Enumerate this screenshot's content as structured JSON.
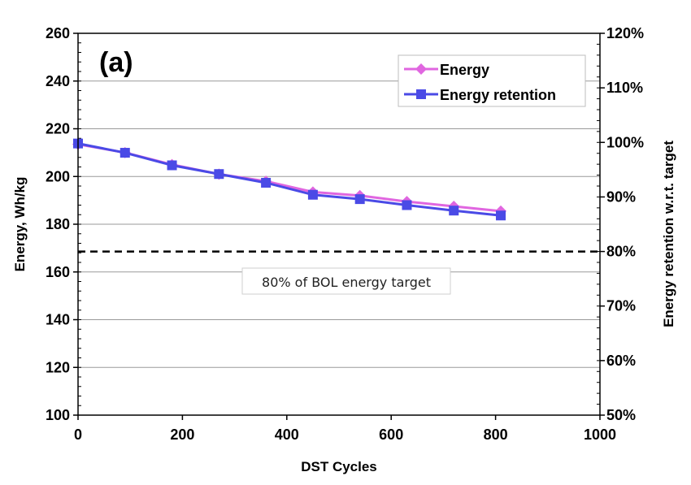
{
  "chart_data": {
    "type": "line",
    "panel_label": "(a)",
    "xlabel": "DST Cycles",
    "ylabel": "Energy, Wh/kg",
    "y2label": "Energy retention w.r.t. target",
    "xlim": [
      0,
      1000
    ],
    "ylim": [
      100,
      260
    ],
    "y2lim": [
      50,
      120
    ],
    "x_ticks": [
      "0",
      "200",
      "400",
      "600",
      "800",
      "1000"
    ],
    "y_ticks": [
      "100",
      "120",
      "140",
      "160",
      "180",
      "200",
      "220",
      "240",
      "260"
    ],
    "y2_ticks": [
      "50%",
      "60%",
      "70%",
      "80%",
      "90%",
      "100%",
      "110%",
      "120%"
    ],
    "grid": "horizontal",
    "legend_position": "top-right",
    "series": [
      {
        "name": "Energy",
        "axis": "left",
        "marker": "diamond",
        "color": "#e066e0",
        "x": [
          0,
          90,
          180,
          270,
          360,
          450,
          540,
          630,
          720,
          810
        ],
        "y": [
          213.5,
          210,
          205,
          201,
          198,
          193.5,
          192,
          189.5,
          187.5,
          185.5
        ]
      },
      {
        "name": "Energy retention",
        "axis": "right",
        "marker": "square",
        "color": "#4a4ae6",
        "x": [
          0,
          90,
          180,
          270,
          360,
          450,
          540,
          630,
          720,
          810
        ],
        "y": [
          99.8,
          98.1,
          95.8,
          94.2,
          92.6,
          90.4,
          89.6,
          88.5,
          87.5,
          86.6
        ]
      }
    ],
    "reference_line": {
      "label": "80% of BOL energy target",
      "y2": 80,
      "style": "dashed",
      "color": "#000000"
    }
  }
}
